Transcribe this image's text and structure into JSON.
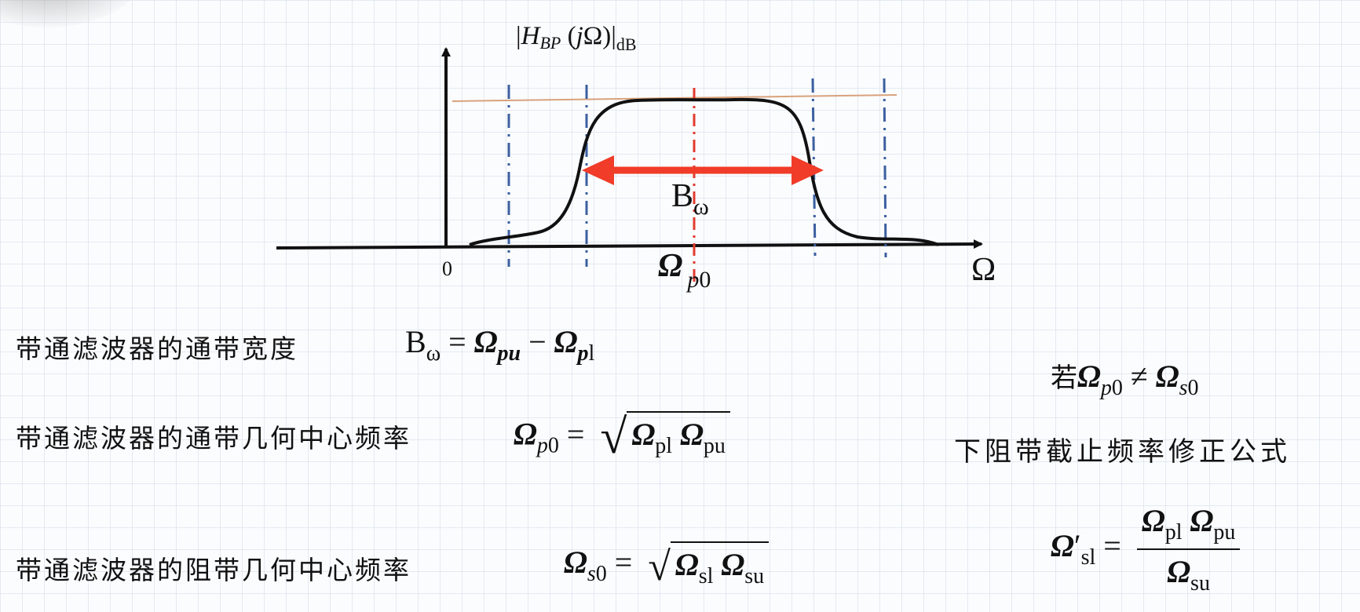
{
  "figure": {
    "y_axis_label": "|H_BP(jΩ)|_dB",
    "x_axis_label": "Ω",
    "origin_label": "0",
    "bandwidth_label": "Bω",
    "center_label": "Ω p0",
    "colors": {
      "curve": "#111111",
      "axes": "#111111",
      "band_edges": "#3c5fa0",
      "center_line": "#e23b2e",
      "arrow": "#f03c28",
      "reference_line": "#d9a27c"
    }
  },
  "formulas": {
    "bandwidth_text": "带通滤波器的通带宽度",
    "bandwidth_eq": "Bω = Ωpu − Ωpl",
    "passband_center_text": "带通滤波器的通带几何中心频率",
    "passband_center_eq": "Ωp0 = √(Ωpl Ωpu)",
    "stopband_center_text": "带通滤波器的阻带几何中心频率",
    "stopband_center_eq": "Ωs0 = √(Ωsl Ωsu)",
    "condition_prefix": "若",
    "condition_eq": "Ωp0 ≠ Ωs0",
    "correction_title": "下阻带截止频率修正公式",
    "correction_eq": "Ω′sl = Ωpl Ωpu / Ωsu"
  }
}
